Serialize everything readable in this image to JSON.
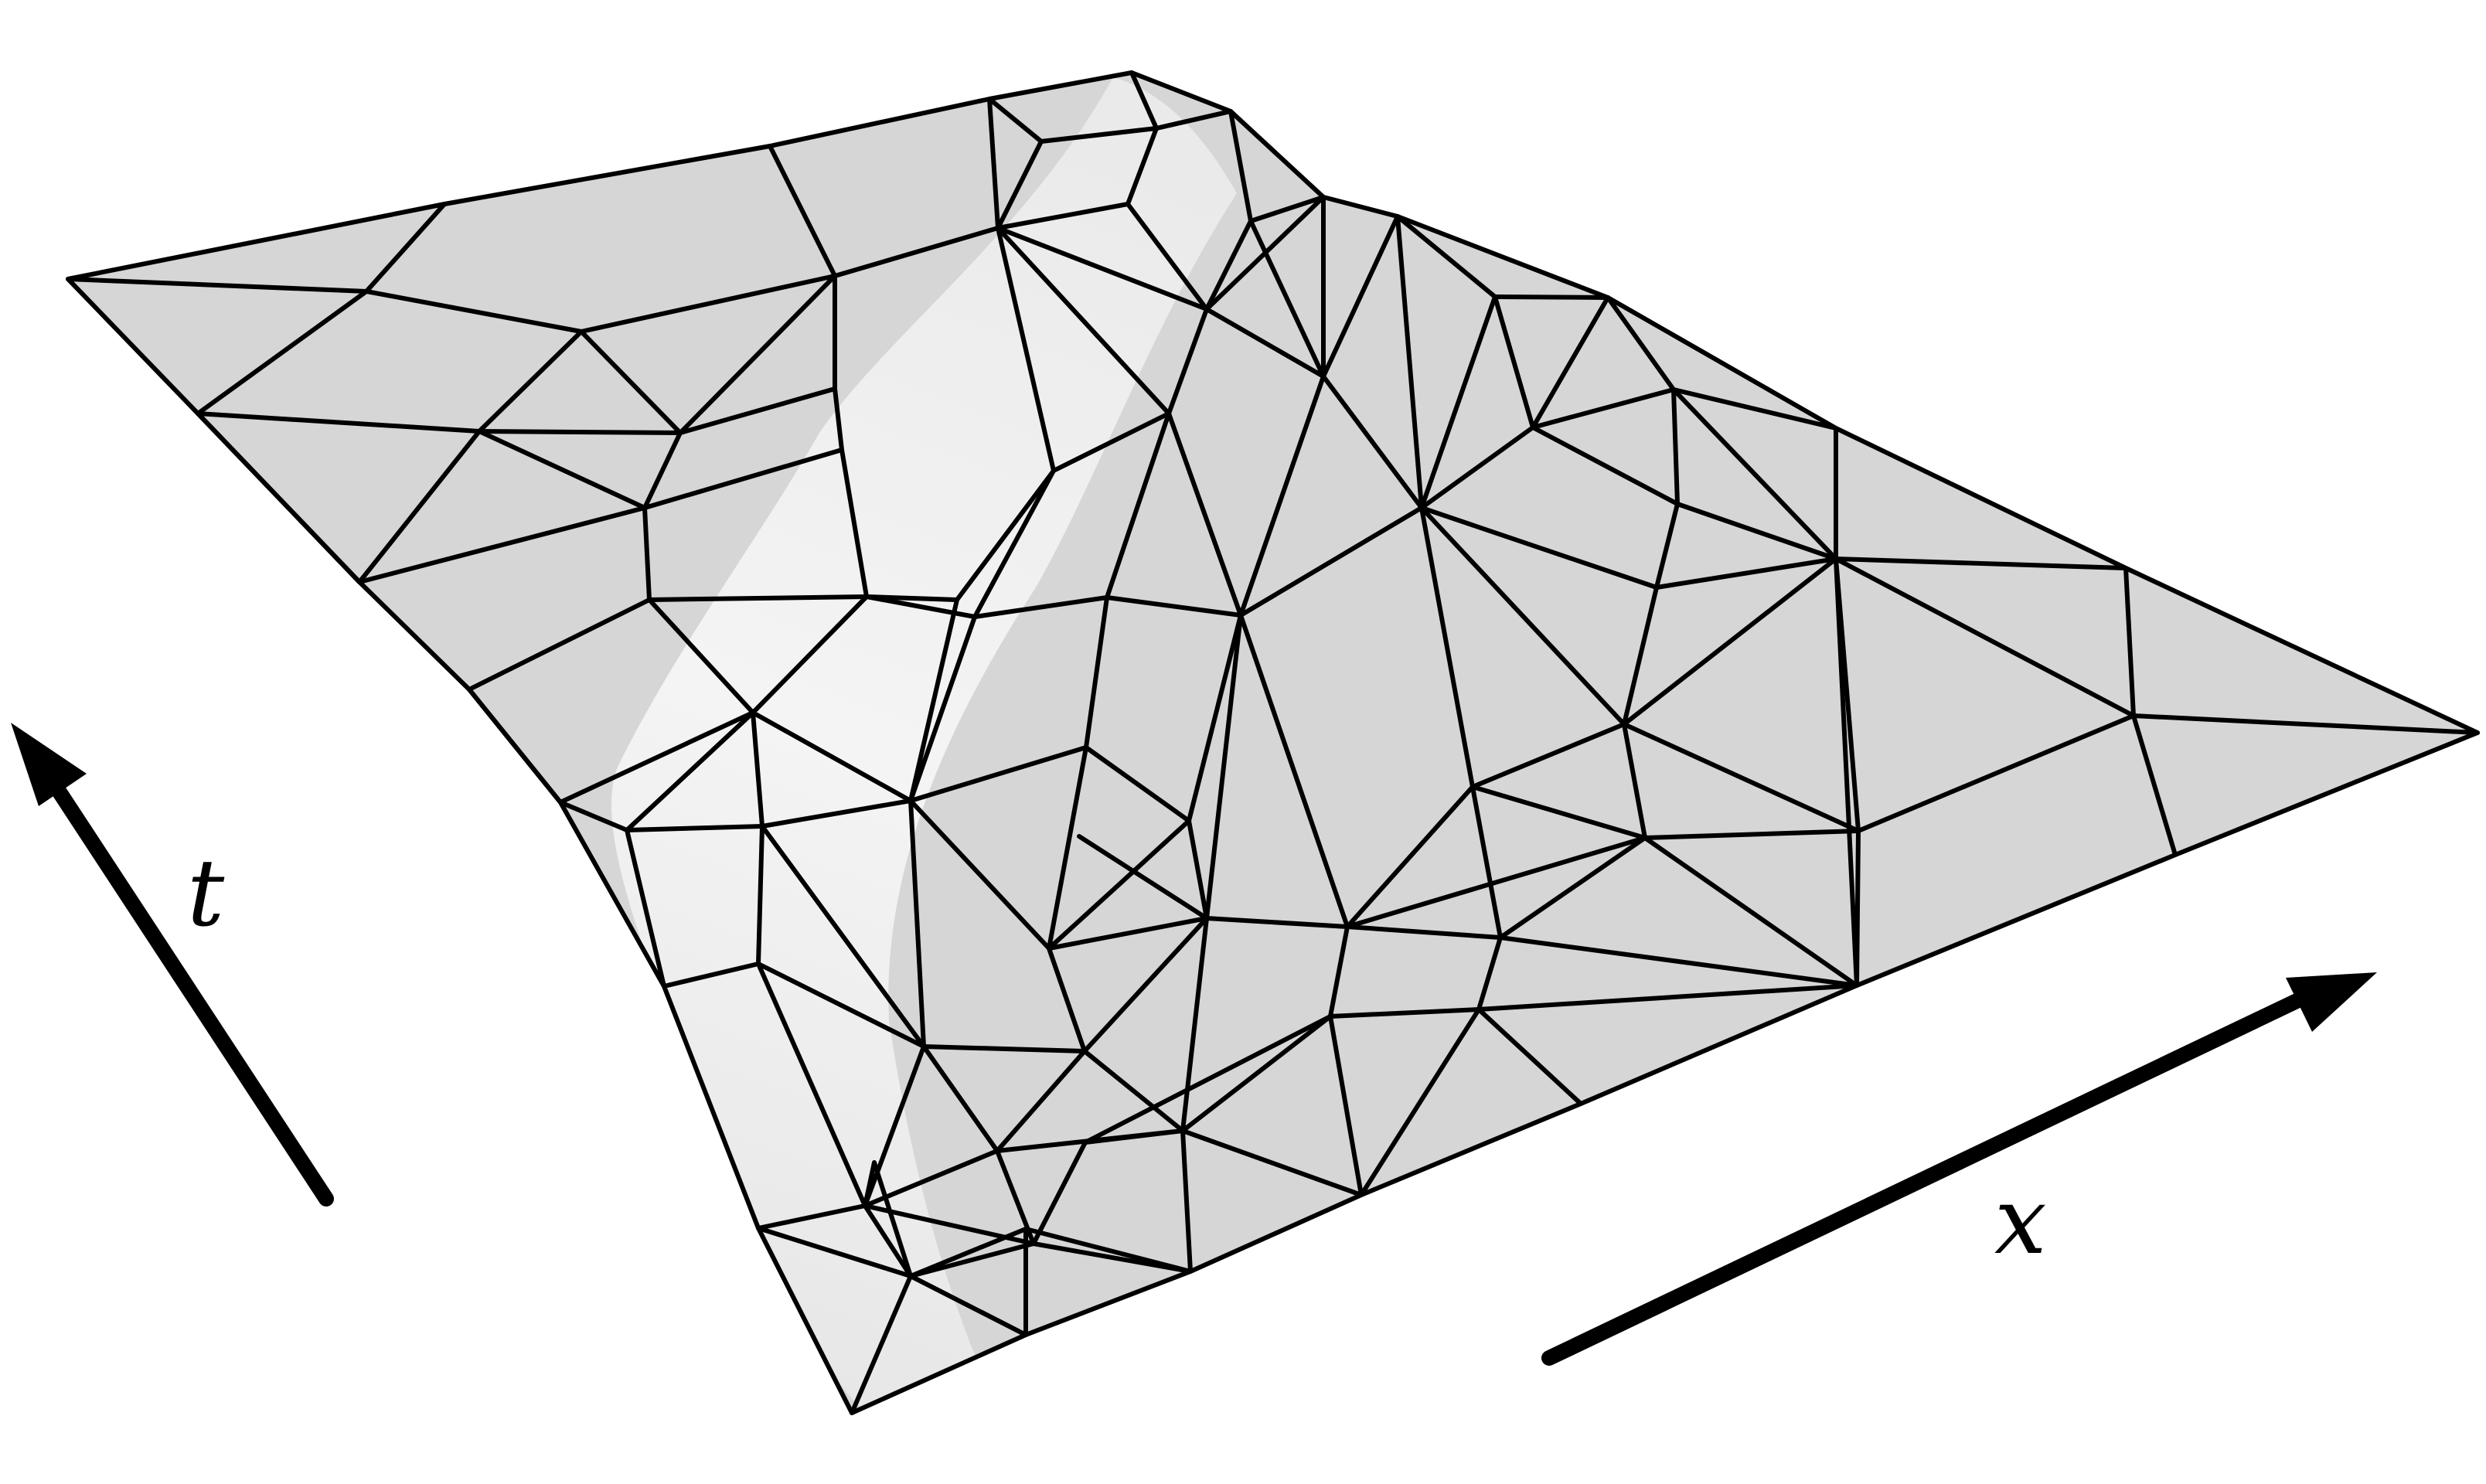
{
  "figure": {
    "kind": "triangulated space-time surface mesh",
    "mesh_fill": "#d6d6d6",
    "ridge_highlight": "#f2f2f2",
    "edge_color": "#000000",
    "background": "#ffffff"
  },
  "axes": [
    {
      "id": "t",
      "label": "t",
      "icon": "arrow-up-left-icon"
    },
    {
      "id": "x",
      "label": "x",
      "icon": "arrow-up-right-icon"
    }
  ]
}
